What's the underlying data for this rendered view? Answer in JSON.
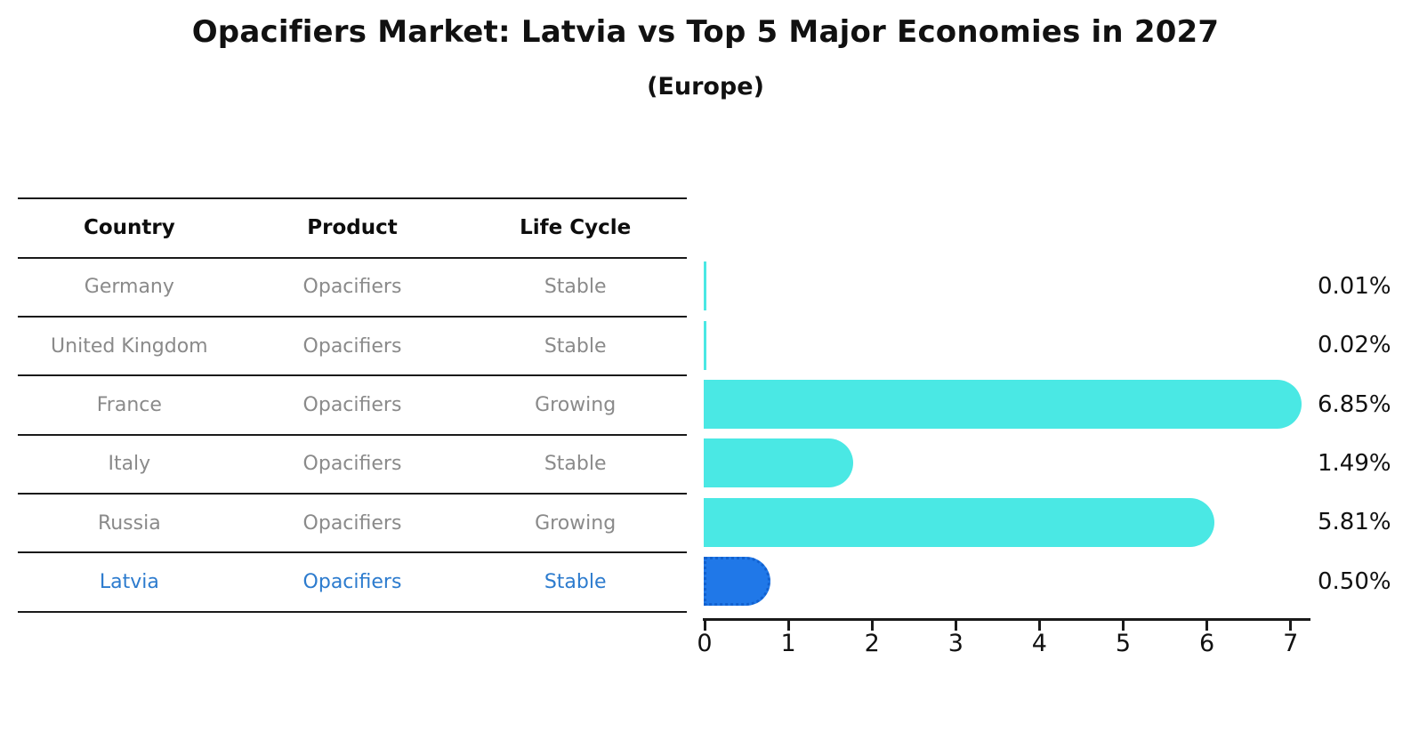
{
  "title": "Opacifiers Market: Latvia vs Top 5 Major Economies in 2027",
  "subtitle": "(Europe)",
  "table": {
    "headers": [
      "Country",
      "Product",
      "Life Cycle"
    ],
    "rows": [
      {
        "country": "Germany",
        "product": "Opacifiers",
        "life_cycle": "Stable",
        "highlight": false
      },
      {
        "country": "United Kingdom",
        "product": "Opacifiers",
        "life_cycle": "Stable",
        "highlight": false
      },
      {
        "country": "France",
        "product": "Opacifiers",
        "life_cycle": "Growing",
        "highlight": false
      },
      {
        "country": "Italy",
        "product": "Opacifiers",
        "life_cycle": "Stable",
        "highlight": false
      },
      {
        "country": "Russia",
        "product": "Opacifiers",
        "life_cycle": "Growing",
        "highlight": false
      },
      {
        "country": "Latvia",
        "product": "Opacifiers",
        "life_cycle": "Stable",
        "highlight": true
      }
    ]
  },
  "chart_data": {
    "type": "bar",
    "orientation": "horizontal",
    "categories": [
      "Germany",
      "United Kingdom",
      "France",
      "Italy",
      "Russia",
      "Latvia"
    ],
    "values": [
      0.01,
      0.02,
      6.85,
      1.49,
      5.81,
      0.5
    ],
    "value_labels": [
      "0.01%",
      "0.02%",
      "6.85%",
      "1.49%",
      "5.81%",
      "0.50%"
    ],
    "x_ticks": [
      "0",
      "1",
      "2",
      "3",
      "4",
      "5",
      "6",
      "7"
    ],
    "xlim": [
      0,
      7.2
    ],
    "grid": false,
    "legend": "none",
    "bar_color": "#4ae8e4",
    "highlight_color": "#2078e8",
    "highlight_index": 5,
    "highlight_text_color": "#2c7bce"
  }
}
